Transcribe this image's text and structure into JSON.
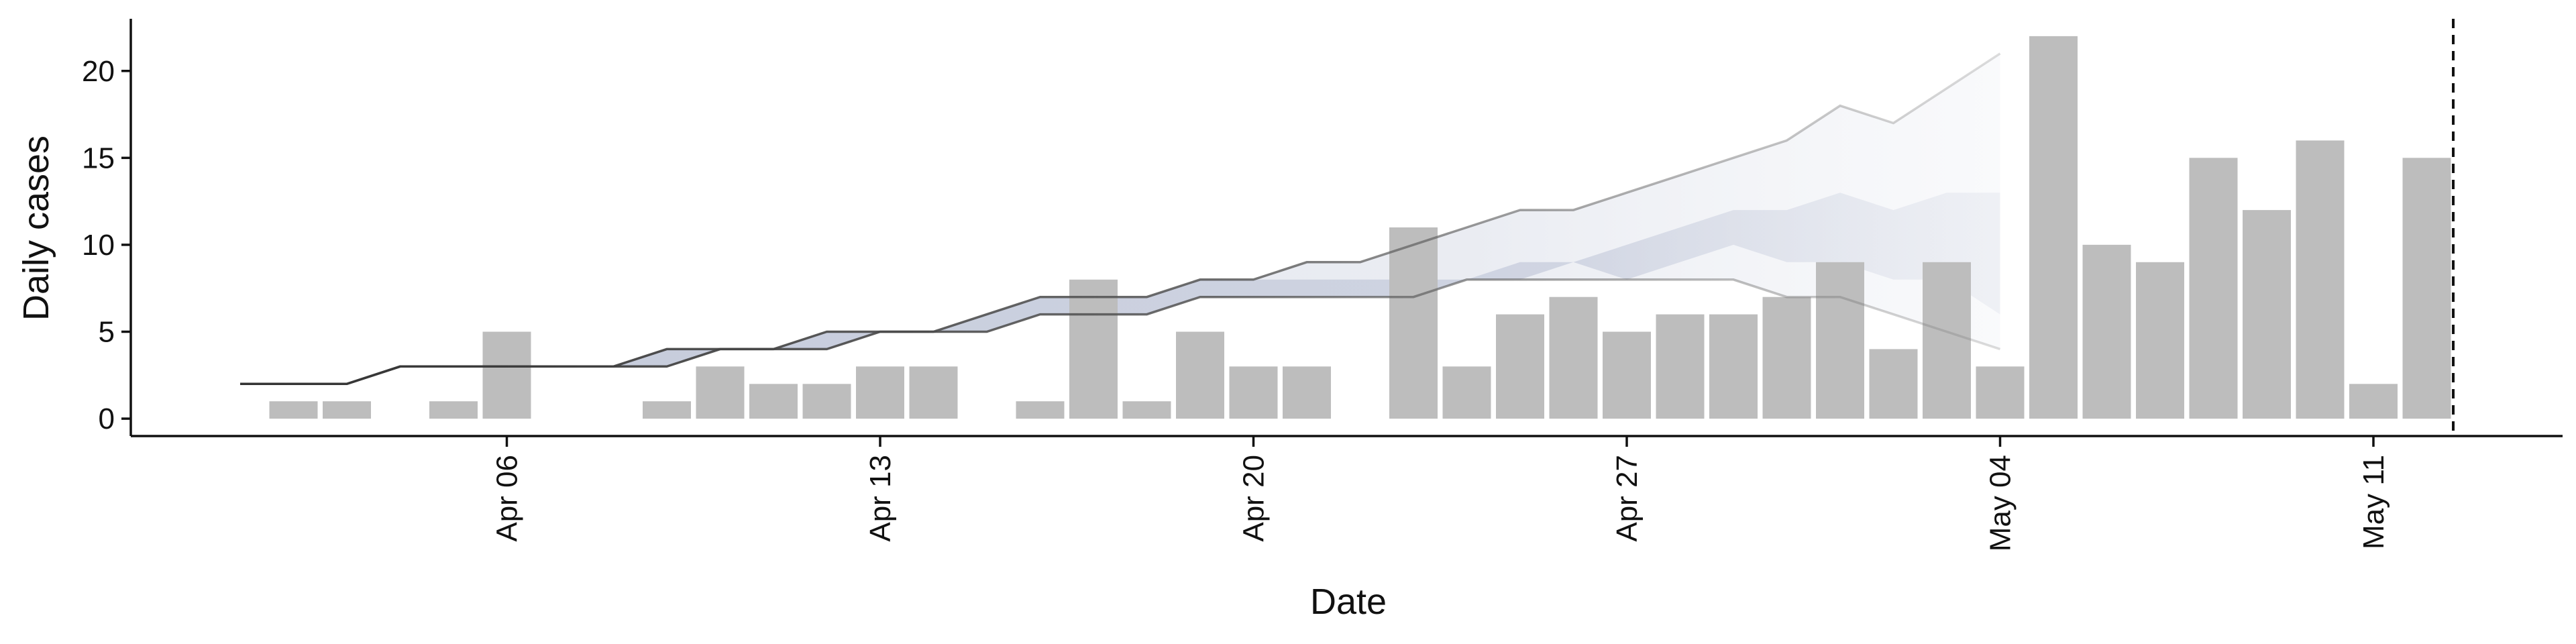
{
  "chart_data": {
    "type": "bar",
    "xlabel": "Date",
    "ylabel": "Daily cases",
    "x_start": "2020-04-01",
    "ylim": [
      -1,
      23
    ],
    "yticks": [
      0,
      5,
      10,
      15,
      20
    ],
    "xticks": [
      {
        "date": "2020-04-06",
        "label": "Apr 06"
      },
      {
        "date": "2020-04-13",
        "label": "Apr 13"
      },
      {
        "date": "2020-04-20",
        "label": "Apr 20"
      },
      {
        "date": "2020-04-27",
        "label": "Apr 27"
      },
      {
        "date": "2020-05-04",
        "label": "May 04"
      },
      {
        "date": "2020-05-11",
        "label": "May 11"
      }
    ],
    "vline_date": "2020-05-13",
    "grid": false,
    "bars": [
      {
        "date": "2020-04-02",
        "value": 1
      },
      {
        "date": "2020-04-03",
        "value": 1
      },
      {
        "date": "2020-04-05",
        "value": 1
      },
      {
        "date": "2020-04-06",
        "value": 5
      },
      {
        "date": "2020-04-09",
        "value": 1
      },
      {
        "date": "2020-04-10",
        "value": 3
      },
      {
        "date": "2020-04-11",
        "value": 2
      },
      {
        "date": "2020-04-12",
        "value": 2
      },
      {
        "date": "2020-04-13",
        "value": 3
      },
      {
        "date": "2020-04-14",
        "value": 3
      },
      {
        "date": "2020-04-16",
        "value": 1
      },
      {
        "date": "2020-04-17",
        "value": 8
      },
      {
        "date": "2020-04-18",
        "value": 1
      },
      {
        "date": "2020-04-19",
        "value": 5
      },
      {
        "date": "2020-04-20",
        "value": 3
      },
      {
        "date": "2020-04-21",
        "value": 3
      },
      {
        "date": "2020-04-23",
        "value": 11
      },
      {
        "date": "2020-04-24",
        "value": 3
      },
      {
        "date": "2020-04-25",
        "value": 6
      },
      {
        "date": "2020-04-26",
        "value": 7
      },
      {
        "date": "2020-04-27",
        "value": 5
      },
      {
        "date": "2020-04-28",
        "value": 6
      },
      {
        "date": "2020-04-29",
        "value": 6
      },
      {
        "date": "2020-04-30",
        "value": 7
      },
      {
        "date": "2020-05-01",
        "value": 9
      },
      {
        "date": "2020-05-02",
        "value": 4
      },
      {
        "date": "2020-05-03",
        "value": 9
      },
      {
        "date": "2020-05-04",
        "value": 3
      },
      {
        "date": "2020-05-05",
        "value": 22
      },
      {
        "date": "2020-05-06",
        "value": 10
      },
      {
        "date": "2020-05-07",
        "value": 9
      },
      {
        "date": "2020-05-08",
        "value": 15
      },
      {
        "date": "2020-05-09",
        "value": 12
      },
      {
        "date": "2020-05-10",
        "value": 16
      },
      {
        "date": "2020-05-11",
        "value": 2
      },
      {
        "date": "2020-05-12",
        "value": 15
      }
    ],
    "band_dates": [
      "2020-04-01",
      "2020-04-02",
      "2020-04-03",
      "2020-04-04",
      "2020-04-05",
      "2020-04-06",
      "2020-04-07",
      "2020-04-08",
      "2020-04-09",
      "2020-04-10",
      "2020-04-11",
      "2020-04-12",
      "2020-04-13",
      "2020-04-14",
      "2020-04-15",
      "2020-04-16",
      "2020-04-17",
      "2020-04-18",
      "2020-04-19",
      "2020-04-20",
      "2020-04-21",
      "2020-04-22",
      "2020-04-23",
      "2020-04-24",
      "2020-04-25",
      "2020-04-26",
      "2020-04-27",
      "2020-04-28",
      "2020-04-29",
      "2020-04-30",
      "2020-05-01",
      "2020-05-02",
      "2020-05-03",
      "2020-05-04"
    ],
    "series": [
      {
        "name": "outer_upper",
        "values": [
          2,
          2,
          2,
          3,
          3,
          3,
          3,
          3,
          4,
          4,
          4,
          5,
          5,
          5,
          6,
          7,
          7,
          7,
          8,
          8,
          9,
          9,
          10,
          11,
          12,
          12,
          13,
          14,
          15,
          16,
          18,
          17,
          19,
          21
        ]
      },
      {
        "name": "outer_lower",
        "values": [
          2,
          2,
          2,
          3,
          3,
          3,
          3,
          3,
          3,
          4,
          4,
          4,
          5,
          5,
          5,
          6,
          6,
          6,
          7,
          7,
          7,
          7,
          7,
          8,
          8,
          8,
          8,
          8,
          8,
          7,
          7,
          6,
          5,
          4
        ]
      },
      {
        "name": "inner_upper",
        "values": [
          2,
          2,
          2,
          3,
          3,
          3,
          3,
          3,
          4,
          4,
          4,
          5,
          5,
          5,
          6,
          7,
          7,
          7,
          8,
          8,
          8,
          8,
          8,
          8,
          9,
          9,
          10,
          11,
          12,
          12,
          13,
          12,
          13,
          13
        ]
      },
      {
        "name": "inner_lower",
        "values": [
          2,
          2,
          2,
          3,
          3,
          3,
          3,
          3,
          3,
          4,
          4,
          4,
          5,
          5,
          5,
          6,
          6,
          6,
          7,
          7,
          7,
          7,
          7,
          8,
          8,
          9,
          8,
          9,
          10,
          9,
          9,
          8,
          8,
          6
        ]
      }
    ]
  },
  "colors": {
    "bar": "#bdbdbd",
    "outer_band": "#e3e6ee",
    "inner_band": "#b9c0d4",
    "line": "#555555",
    "axis": "#111111"
  }
}
